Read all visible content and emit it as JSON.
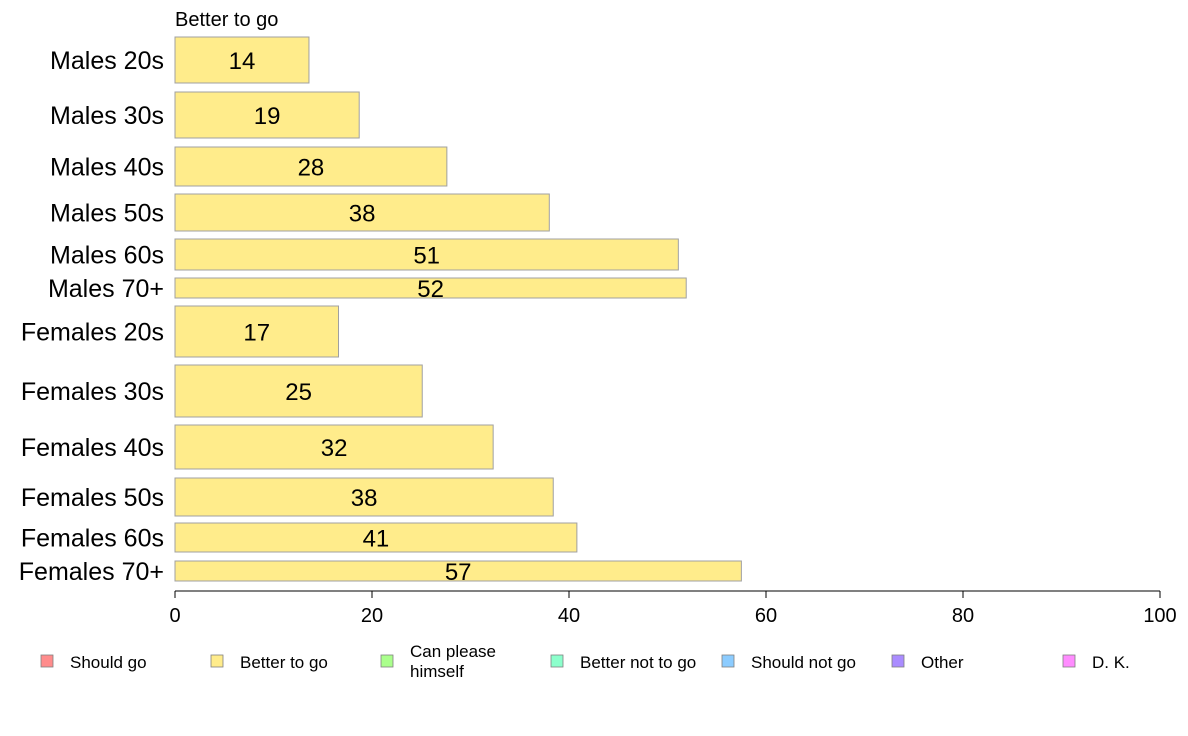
{
  "chart_data": {
    "type": "bar",
    "orientation": "horizontal",
    "series_title": "Better to go",
    "categories": [
      "Males 20s",
      "Males 30s",
      "Males 40s",
      "Males 50s",
      "Males 60s",
      "Males 70+",
      "Females 20s",
      "Females 30s",
      "Females 40s",
      "Females 50s",
      "Females 60s",
      "Females 70+"
    ],
    "values": [
      13.6,
      18.7,
      27.6,
      38.0,
      51.1,
      51.9,
      16.6,
      25.1,
      32.3,
      38.4,
      40.8,
      57.5
    ],
    "value_labels": [
      "14",
      "19",
      "28",
      "38",
      "51",
      "52",
      "17",
      "25",
      "32",
      "38",
      "41",
      "57"
    ],
    "bar_color": "#ffec8b",
    "bar_stroke": "#a0a0a0",
    "xlim": [
      0,
      100
    ],
    "xticks": [
      0,
      20,
      40,
      60,
      80,
      100
    ],
    "grid": false,
    "legend_position": "bottom",
    "legend": [
      {
        "label": "Should go",
        "color": "#ff8c8c"
      },
      {
        "label": "Better to go",
        "color": "#ffec8b"
      },
      {
        "label": "Can please himself",
        "lines": [
          "Can please",
          "himself"
        ],
        "color": "#aaff8c"
      },
      {
        "label": "Better not to go",
        "color": "#8cffcc"
      },
      {
        "label": "Should not go",
        "color": "#8cccff"
      },
      {
        "label": "Other",
        "color": "#aa8cff"
      },
      {
        "label": "D. K.",
        "color": "#ff8cff"
      }
    ]
  }
}
